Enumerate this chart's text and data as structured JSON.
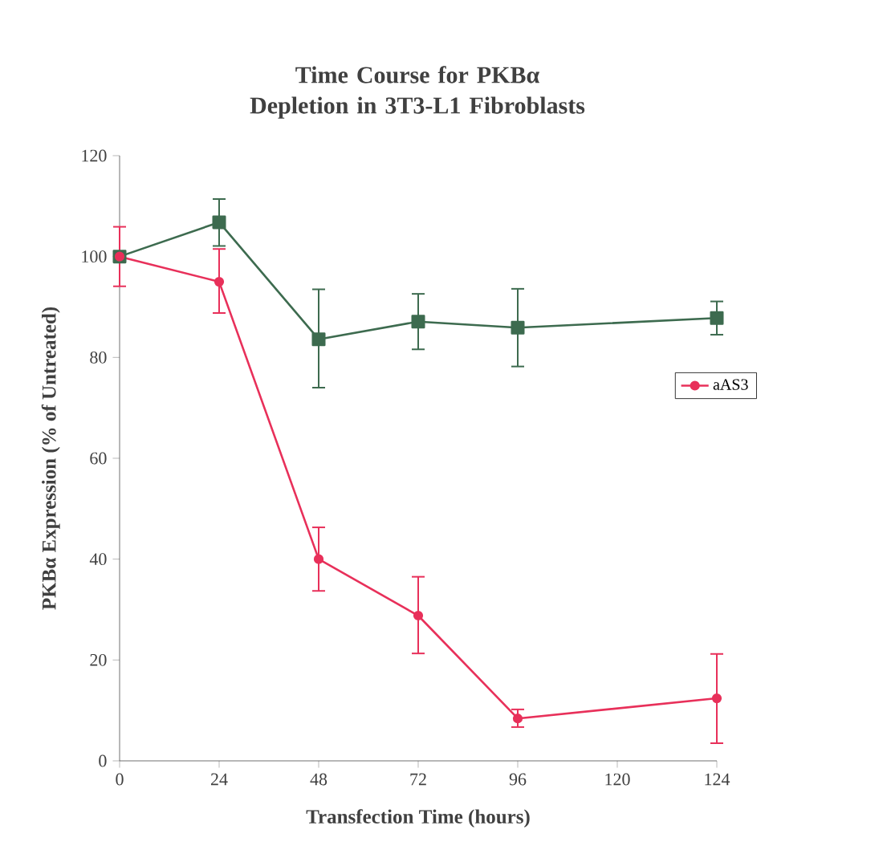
{
  "chart_data": {
    "type": "line",
    "title": "Time Course for PKBα Depletion in 3T3-L1 Fibroblasts",
    "xlabel": "Transfection Time (hours)",
    "ylabel": "PKBα Expression (% of Untreated)",
    "categories": [
      "0",
      "24",
      "48",
      "72",
      "96",
      "120",
      "124"
    ],
    "series": [
      {
        "color": "#3d6b4f",
        "marker": "square",
        "values": [
          100,
          106.8,
          83.6,
          87.1,
          85.9,
          null,
          87.8
        ],
        "errors": [
          null,
          [
            102.1,
            111.4
          ],
          [
            74.0,
            93.5
          ],
          [
            81.6,
            92.6
          ],
          [
            78.2,
            93.6
          ],
          null,
          [
            84.5,
            91.1
          ]
        ]
      },
      {
        "name": "aAS3",
        "color": "#e8305a",
        "marker": "circle",
        "values": [
          100,
          95.0,
          40.0,
          28.8,
          8.4,
          null,
          12.4
        ],
        "errors": [
          [
            94.1,
            105.9
          ],
          [
            88.8,
            101.5
          ],
          [
            33.7,
            46.3
          ],
          [
            21.3,
            36.5
          ],
          [
            6.7,
            10.2
          ],
          null,
          [
            3.5,
            21.2
          ]
        ]
      }
    ],
    "ylim": [
      0,
      120
    ],
    "yticks": [
      0,
      20,
      40,
      60,
      80,
      100,
      120
    ],
    "legend": "right",
    "grid": false
  }
}
